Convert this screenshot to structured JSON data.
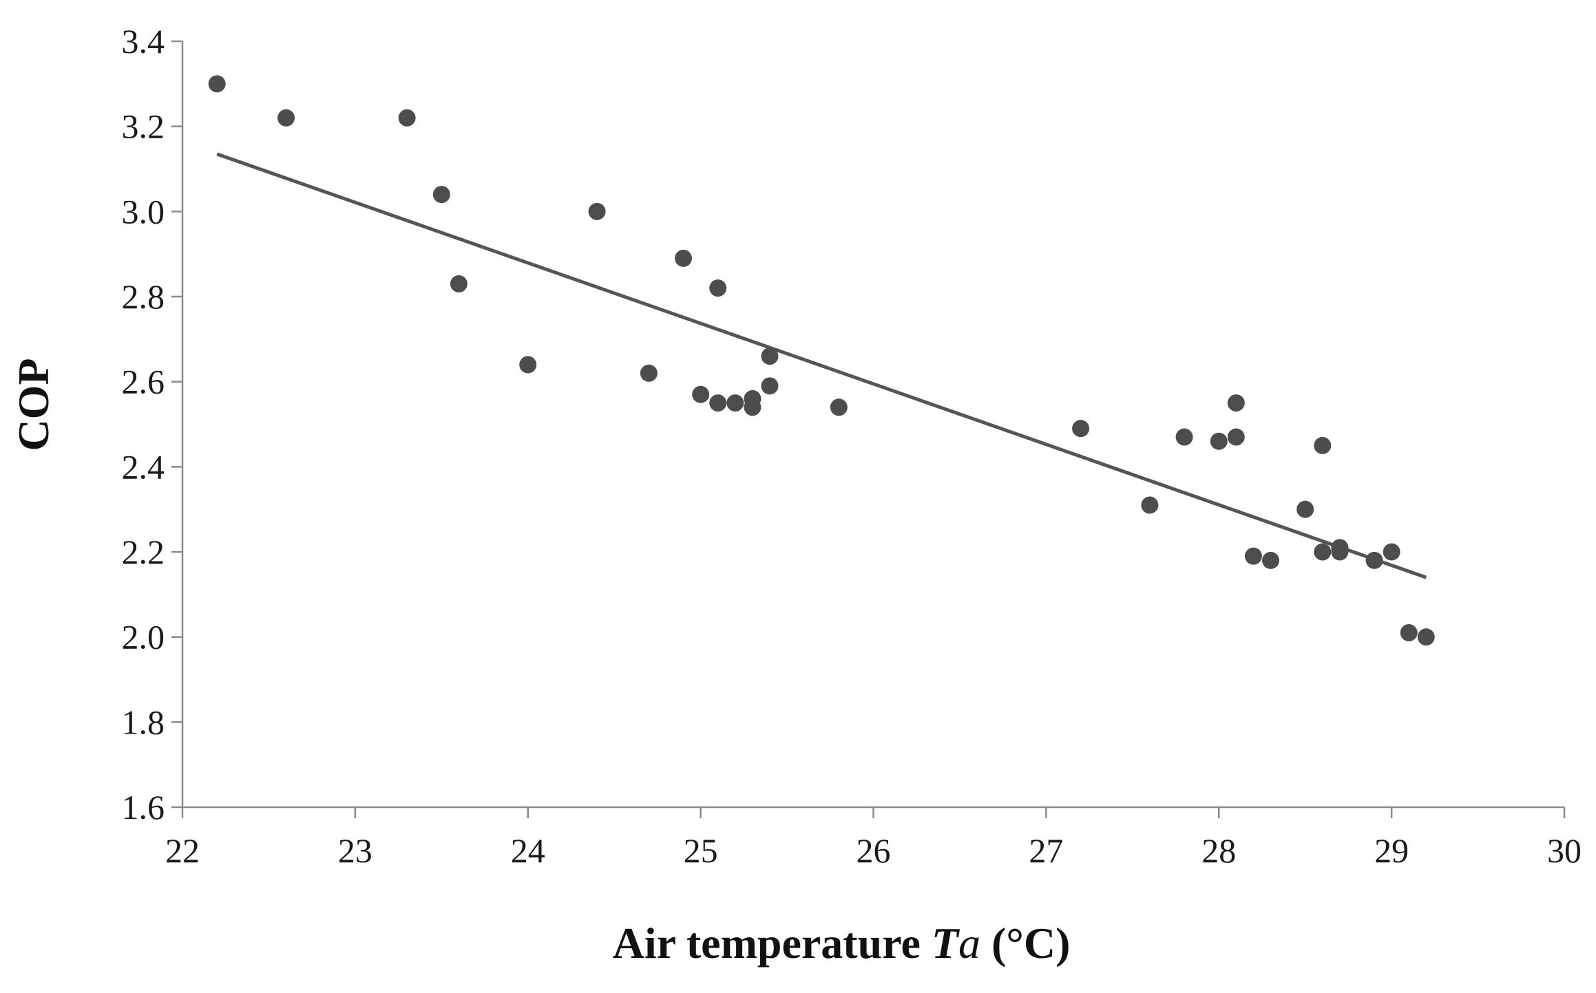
{
  "chart_data": {
    "type": "scatter",
    "title": "",
    "xlabel": "Air temperature",
    "xlabel_symbol": "T",
    "xlabel_subscript": "a",
    "xlabel_unit": "(°C)",
    "ylabel": "COP",
    "xlim": [
      22,
      30
    ],
    "ylim": [
      1.6,
      3.4
    ],
    "xticks": [
      22,
      23,
      24,
      25,
      26,
      27,
      28,
      29,
      30
    ],
    "yticks": [
      1.6,
      1.8,
      2.0,
      2.2,
      2.4,
      2.6,
      2.8,
      3.0,
      3.2,
      3.4
    ],
    "ytick_labels": [
      "1.6",
      "1.8",
      "2.0",
      "2.2",
      "2.4",
      "2.6",
      "2.8",
      "3.0",
      "3.2",
      "3.4"
    ],
    "grid": false,
    "legend": "none",
    "colors": {
      "point": "#4d4d4d",
      "trend": "#555555",
      "axis": "#8a8a8a"
    },
    "points": [
      {
        "x": 22.2,
        "y": 3.3
      },
      {
        "x": 22.6,
        "y": 3.22
      },
      {
        "x": 23.3,
        "y": 3.22
      },
      {
        "x": 23.5,
        "y": 3.04
      },
      {
        "x": 23.6,
        "y": 2.83
      },
      {
        "x": 24.0,
        "y": 2.64
      },
      {
        "x": 24.4,
        "y": 3.0
      },
      {
        "x": 24.7,
        "y": 2.62
      },
      {
        "x": 24.9,
        "y": 2.89
      },
      {
        "x": 25.0,
        "y": 2.57
      },
      {
        "x": 25.1,
        "y": 2.55
      },
      {
        "x": 25.1,
        "y": 2.82
      },
      {
        "x": 25.2,
        "y": 2.55
      },
      {
        "x": 25.3,
        "y": 2.56
      },
      {
        "x": 25.3,
        "y": 2.54
      },
      {
        "x": 25.4,
        "y": 2.59
      },
      {
        "x": 25.4,
        "y": 2.66
      },
      {
        "x": 25.8,
        "y": 2.54
      },
      {
        "x": 27.2,
        "y": 2.49
      },
      {
        "x": 27.6,
        "y": 2.31
      },
      {
        "x": 27.8,
        "y": 2.47
      },
      {
        "x": 28.0,
        "y": 2.46
      },
      {
        "x": 28.1,
        "y": 2.47
      },
      {
        "x": 28.1,
        "y": 2.55
      },
      {
        "x": 28.2,
        "y": 2.19
      },
      {
        "x": 28.3,
        "y": 2.18
      },
      {
        "x": 28.5,
        "y": 2.3
      },
      {
        "x": 28.6,
        "y": 2.2
      },
      {
        "x": 28.6,
        "y": 2.45
      },
      {
        "x": 28.7,
        "y": 2.21
      },
      {
        "x": 28.7,
        "y": 2.2
      },
      {
        "x": 28.9,
        "y": 2.18
      },
      {
        "x": 29.0,
        "y": 2.2
      },
      {
        "x": 29.1,
        "y": 2.01
      },
      {
        "x": 29.2,
        "y": 2.0
      }
    ],
    "trendline": {
      "type": "linear",
      "x": [
        22.2,
        29.2
      ],
      "y": [
        3.135,
        2.14
      ]
    }
  }
}
